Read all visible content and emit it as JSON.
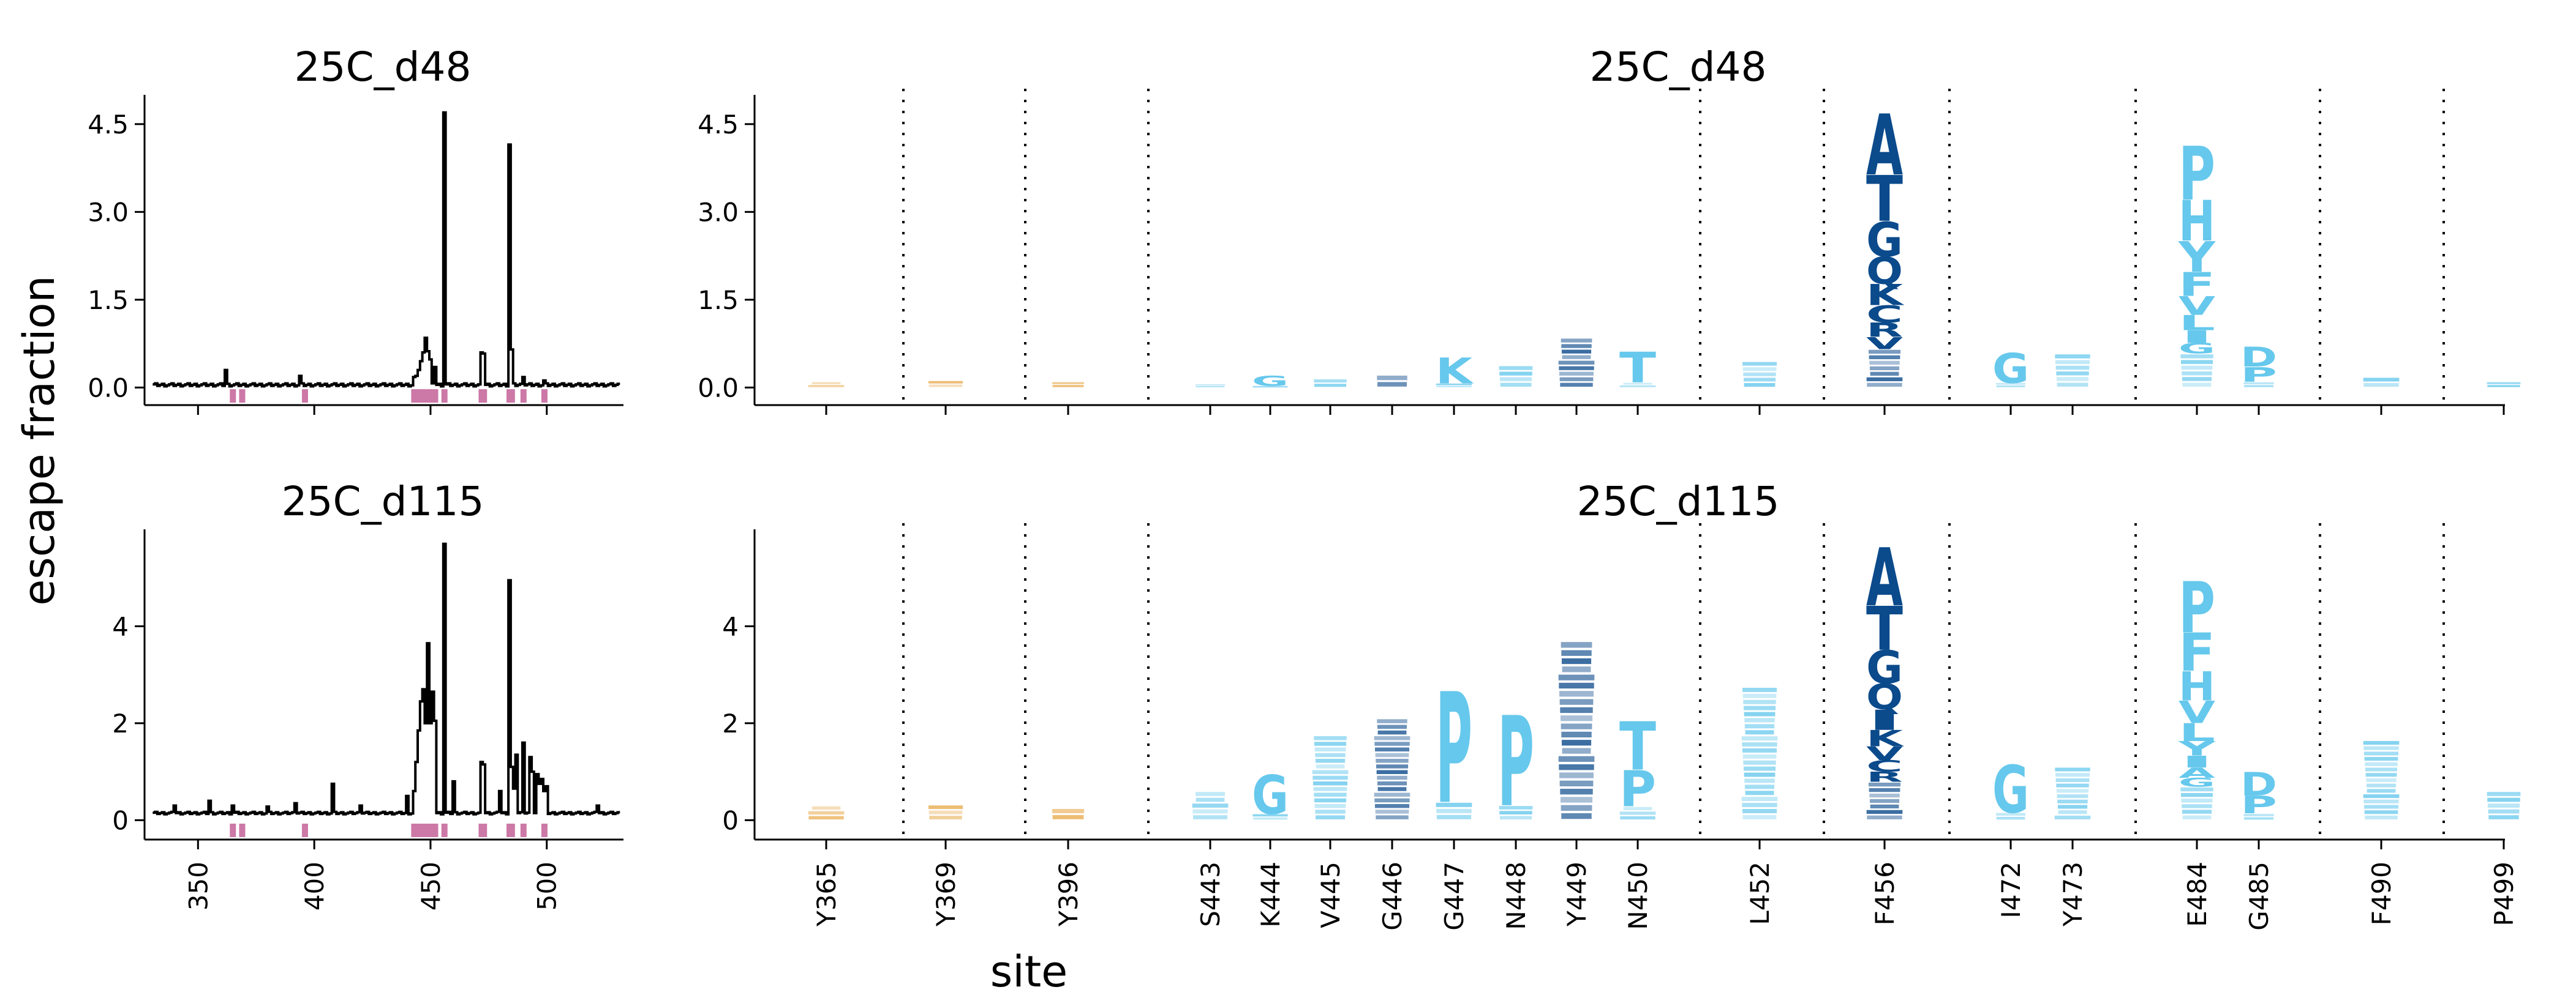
{
  "figure": {
    "ylabel": "escape fraction",
    "xlabel": "site"
  },
  "colors": {
    "line": "#000000",
    "site_marks": "#cc79a7",
    "dark_blue": "#0b4a8b",
    "light_blue": "#66c8ec",
    "orange": "#e6a13a",
    "separator": "#000000"
  },
  "chart_data": [
    {
      "type": "line",
      "panel": "line-top",
      "title": "25C_d48",
      "x_ticks": [
        350,
        400,
        450,
        500
      ],
      "y_ticks": [
        "0.0",
        "1.5",
        "3.0",
        "4.5"
      ],
      "xlim": [
        327,
        533
      ],
      "ylim": [
        -0.3,
        5.0
      ],
      "baseline": 0.02,
      "peaks": [
        {
          "site": 362,
          "value": 0.3
        },
        {
          "site": 394,
          "value": 0.2
        },
        {
          "site": 443,
          "value": 0.18
        },
        {
          "site": 444,
          "value": 0.2
        },
        {
          "site": 445,
          "value": 0.3
        },
        {
          "site": 446,
          "value": 0.45
        },
        {
          "site": 447,
          "value": 0.6
        },
        {
          "site": 448,
          "value": 0.85
        },
        {
          "site": 449,
          "value": 0.62
        },
        {
          "site": 450,
          "value": 0.48
        },
        {
          "site": 452,
          "value": 0.35
        },
        {
          "site": 456,
          "value": 4.7
        },
        {
          "site": 472,
          "value": 0.6
        },
        {
          "site": 473,
          "value": 0.58
        },
        {
          "site": 484,
          "value": 4.15
        },
        {
          "site": 485,
          "value": 0.65
        },
        {
          "site": 490,
          "value": 0.18
        },
        {
          "site": 499,
          "value": 0.12
        }
      ],
      "site_marks": [
        365,
        369,
        396,
        443,
        444,
        445,
        446,
        447,
        448,
        449,
        450,
        452,
        456,
        472,
        473,
        484,
        485,
        490,
        499
      ]
    },
    {
      "type": "line",
      "panel": "line-bottom",
      "title": "25C_d115",
      "x_ticks": [
        350,
        400,
        450,
        500
      ],
      "x_tick_labels": [
        "350",
        "400",
        "450",
        "500"
      ],
      "y_ticks": [
        "0",
        "2",
        "4"
      ],
      "xlim": [
        327,
        533
      ],
      "ylim": [
        -0.4,
        6.0
      ],
      "baseline": 0.12,
      "peaks": [
        {
          "site": 340,
          "value": 0.3
        },
        {
          "site": 355,
          "value": 0.4
        },
        {
          "site": 365,
          "value": 0.3
        },
        {
          "site": 380,
          "value": 0.28
        },
        {
          "site": 392,
          "value": 0.35
        },
        {
          "site": 408,
          "value": 0.75
        },
        {
          "site": 420,
          "value": 0.3
        },
        {
          "site": 440,
          "value": 0.5
        },
        {
          "site": 443,
          "value": 0.6
        },
        {
          "site": 444,
          "value": 1.2
        },
        {
          "site": 445,
          "value": 1.85
        },
        {
          "site": 446,
          "value": 2.45
        },
        {
          "site": 447,
          "value": 2.7
        },
        {
          "site": 448,
          "value": 2.0
        },
        {
          "site": 449,
          "value": 3.65
        },
        {
          "site": 450,
          "value": 2.0
        },
        {
          "site": 451,
          "value": 2.65
        },
        {
          "site": 452,
          "value": 2.05
        },
        {
          "site": 456,
          "value": 5.7
        },
        {
          "site": 460,
          "value": 0.8
        },
        {
          "site": 472,
          "value": 1.2
        },
        {
          "site": 473,
          "value": 1.15
        },
        {
          "site": 480,
          "value": 0.6
        },
        {
          "site": 484,
          "value": 4.95
        },
        {
          "site": 485,
          "value": 1.1
        },
        {
          "site": 486,
          "value": 0.65
        },
        {
          "site": 487,
          "value": 1.35
        },
        {
          "site": 490,
          "value": 1.6
        },
        {
          "site": 493,
          "value": 1.3
        },
        {
          "site": 494,
          "value": 1.0
        },
        {
          "site": 496,
          "value": 0.95
        },
        {
          "site": 497,
          "value": 0.75
        },
        {
          "site": 498,
          "value": 0.85
        },
        {
          "site": 499,
          "value": 0.6
        },
        {
          "site": 500,
          "value": 0.7
        },
        {
          "site": 522,
          "value": 0.3
        }
      ],
      "site_marks": [
        365,
        369,
        396,
        443,
        444,
        445,
        446,
        447,
        448,
        449,
        450,
        452,
        456,
        472,
        473,
        484,
        485,
        490,
        499
      ]
    },
    {
      "type": "logo",
      "panel": "logo-top",
      "title": "25C_d48",
      "y_ticks": [
        "0.0",
        "1.5",
        "3.0",
        "4.5"
      ],
      "ylim": [
        -0.3,
        5.0
      ],
      "sites": [
        {
          "label": "Y365",
          "total": 0.1,
          "letters": "",
          "color": "orange"
        },
        {
          "label": "Y369",
          "total": 0.12,
          "letters": "",
          "color": "orange"
        },
        {
          "label": "Y396",
          "total": 0.1,
          "letters": "",
          "color": "orange"
        },
        {
          "label": "S443",
          "total": 0.06,
          "letters": "",
          "color": "light"
        },
        {
          "label": "K444",
          "total": 0.2,
          "letters": "G",
          "color": "light"
        },
        {
          "label": "V445",
          "total": 0.15,
          "letters": "",
          "color": "light"
        },
        {
          "label": "G446",
          "total": 0.22,
          "letters": "",
          "color": "dark"
        },
        {
          "label": "G447",
          "total": 0.52,
          "letters": "K",
          "color": "light"
        },
        {
          "label": "N448",
          "total": 0.38,
          "letters": "",
          "color": "light"
        },
        {
          "label": "Y449",
          "total": 0.85,
          "letters": "",
          "color": "dark"
        },
        {
          "label": "N450",
          "total": 0.62,
          "letters": "T",
          "color": "light"
        },
        {
          "label": "L452",
          "total": 0.45,
          "letters": "",
          "color": "light"
        },
        {
          "label": "F456",
          "total": 4.7,
          "letters": "ATGQKCRV",
          "color": "dark"
        },
        {
          "label": "I472",
          "total": 0.6,
          "letters": "G",
          "color": "light"
        },
        {
          "label": "Y473",
          "total": 0.58,
          "letters": "",
          "color": "light"
        },
        {
          "label": "E484",
          "total": 4.15,
          "letters": "PHYFVLIG",
          "color": "light"
        },
        {
          "label": "G485",
          "total": 0.7,
          "letters": "DP",
          "color": "light"
        },
        {
          "label": "F490",
          "total": 0.18,
          "letters": "",
          "color": "light"
        },
        {
          "label": "P499",
          "total": 0.1,
          "letters": "",
          "color": "light"
        }
      ]
    },
    {
      "type": "logo",
      "panel": "logo-bottom",
      "title": "25C_d115",
      "y_ticks": [
        "0",
        "2",
        "4"
      ],
      "ylim": [
        -0.4,
        6.0
      ],
      "sites": [
        {
          "label": "Y365",
          "total": 0.3,
          "letters": "",
          "color": "orange"
        },
        {
          "label": "Y369",
          "total": 0.32,
          "letters": "",
          "color": "orange"
        },
        {
          "label": "Y396",
          "total": 0.25,
          "letters": "",
          "color": "orange"
        },
        {
          "label": "S443",
          "total": 0.6,
          "letters": "",
          "color": "light"
        },
        {
          "label": "K444",
          "total": 0.95,
          "letters": "G",
          "color": "light"
        },
        {
          "label": "V445",
          "total": 1.75,
          "letters": "",
          "color": "light"
        },
        {
          "label": "G446",
          "total": 2.1,
          "letters": "",
          "color": "dark"
        },
        {
          "label": "G447",
          "total": 2.7,
          "letters": "P",
          "color": "light"
        },
        {
          "label": "N448",
          "total": 2.2,
          "letters": "P",
          "color": "light"
        },
        {
          "label": "Y449",
          "total": 3.7,
          "letters": "",
          "color": "dark"
        },
        {
          "label": "N450",
          "total": 2.05,
          "letters": "TP",
          "color": "light"
        },
        {
          "label": "L452",
          "total": 2.75,
          "letters": "",
          "color": "light"
        },
        {
          "label": "F456",
          "total": 5.65,
          "letters": "ATGQIKVCR",
          "color": "dark"
        },
        {
          "label": "I472",
          "total": 1.15,
          "letters": "G",
          "color": "light"
        },
        {
          "label": "Y473",
          "total": 1.1,
          "letters": "",
          "color": "light"
        },
        {
          "label": "E484",
          "total": 4.95,
          "letters": "PFHVLYIAG",
          "color": "light"
        },
        {
          "label": "G485",
          "total": 1.0,
          "letters": "DP",
          "color": "light"
        },
        {
          "label": "F490",
          "total": 1.65,
          "letters": "",
          "color": "light"
        },
        {
          "label": "P499",
          "total": 0.6,
          "letters": "",
          "color": "light"
        }
      ]
    }
  ]
}
